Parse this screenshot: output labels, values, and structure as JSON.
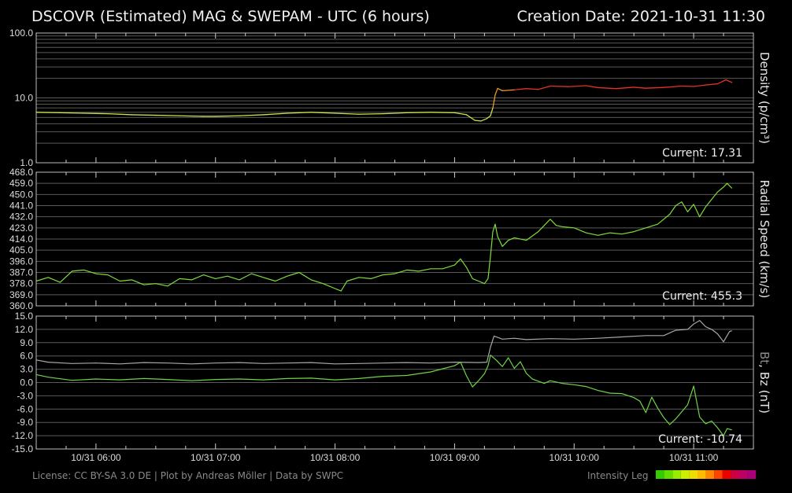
{
  "header": {
    "title": "DSCOVR (Estimated) MAG & SWEPAM - UTC (6 hours)",
    "creation": "Creation Date: 2021-10-31 11:30"
  },
  "footer": {
    "license": "License: CC BY-SA 3.0 DE | Plot by Andreas Möller | Data by SWPC",
    "legend_label": "Intensity Leg",
    "legend_colors": [
      "#33cc00",
      "#66dd00",
      "#99ee00",
      "#ccee00",
      "#eedd00",
      "#ffbb00",
      "#ff8800",
      "#ff4400",
      "#ee0000",
      "#cc0044",
      "#bb0066",
      "#aa0077"
    ]
  },
  "chart_data": [
    {
      "type": "line",
      "id": "density",
      "ylabel": "Density (p/cm³)",
      "yscale": "log",
      "ylim": [
        1,
        100
      ],
      "yticks": [
        "100.0",
        "10.0",
        "1.0"
      ],
      "current": "Current: 17.31",
      "xlim": [
        5.5,
        11.5
      ],
      "xticks": [
        "10/31 06:00",
        "10/31 07:00",
        "10/31 08:00",
        "10/31 09:00",
        "10/31 10:00",
        "10/31 11:00"
      ],
      "series": [
        {
          "name": "Density",
          "points": [
            [
              5.5,
              6.0
            ],
            [
              5.7,
              5.9
            ],
            [
              5.9,
              5.8
            ],
            [
              6.1,
              5.7
            ],
            [
              6.3,
              5.5
            ],
            [
              6.5,
              5.4
            ],
            [
              6.7,
              5.3
            ],
            [
              6.9,
              5.2
            ],
            [
              7.0,
              5.2
            ],
            [
              7.2,
              5.3
            ],
            [
              7.4,
              5.5
            ],
            [
              7.6,
              5.8
            ],
            [
              7.8,
              6.0
            ],
            [
              8.0,
              5.8
            ],
            [
              8.2,
              5.6
            ],
            [
              8.4,
              5.7
            ],
            [
              8.6,
              5.9
            ],
            [
              8.8,
              6.0
            ],
            [
              9.0,
              5.9
            ],
            [
              9.1,
              5.5
            ],
            [
              9.17,
              4.5
            ],
            [
              9.22,
              4.4
            ],
            [
              9.27,
              4.8
            ],
            [
              9.3,
              5.3
            ],
            [
              9.32,
              7.0
            ],
            [
              9.34,
              11.2
            ],
            [
              9.36,
              14.0
            ],
            [
              9.4,
              12.9
            ],
            [
              9.5,
              13.3
            ],
            [
              9.6,
              13.9
            ],
            [
              9.7,
              13.5
            ],
            [
              9.8,
              15.2
            ],
            [
              9.95,
              14.9
            ],
            [
              10.1,
              15.4
            ],
            [
              10.2,
              14.4
            ],
            [
              10.35,
              13.9
            ],
            [
              10.5,
              14.6
            ],
            [
              10.6,
              14.1
            ],
            [
              10.75,
              14.5
            ],
            [
              10.9,
              15.2
            ],
            [
              11.0,
              15.0
            ],
            [
              11.1,
              15.8
            ],
            [
              11.2,
              16.5
            ],
            [
              11.27,
              19.0
            ],
            [
              11.32,
              17.3
            ]
          ]
        }
      ]
    },
    {
      "type": "line",
      "id": "speed",
      "ylabel": "Radial Speed (km/s)",
      "ylim": [
        360,
        468
      ],
      "yticks": [
        "468.0",
        "459.0",
        "450.0",
        "441.0",
        "432.0",
        "423.0",
        "414.0",
        "405.0",
        "396.0",
        "387.0",
        "378.0",
        "369.0",
        "360.0"
      ],
      "current": "Current: 455.3",
      "xlim": [
        5.5,
        11.5
      ],
      "series": [
        {
          "name": "Radial Speed",
          "points": [
            [
              5.5,
              380
            ],
            [
              5.6,
              383
            ],
            [
              5.7,
              379
            ],
            [
              5.8,
              388
            ],
            [
              5.9,
              389
            ],
            [
              6.0,
              386
            ],
            [
              6.1,
              385
            ],
            [
              6.2,
              380
            ],
            [
              6.3,
              381
            ],
            [
              6.4,
              377
            ],
            [
              6.5,
              378
            ],
            [
              6.6,
              376
            ],
            [
              6.7,
              382
            ],
            [
              6.8,
              381
            ],
            [
              6.9,
              385
            ],
            [
              7.0,
              382
            ],
            [
              7.1,
              384
            ],
            [
              7.2,
              381
            ],
            [
              7.3,
              386
            ],
            [
              7.4,
              383
            ],
            [
              7.5,
              380
            ],
            [
              7.6,
              384
            ],
            [
              7.7,
              387
            ],
            [
              7.8,
              381
            ],
            [
              7.9,
              378
            ],
            [
              8.0,
              374
            ],
            [
              8.05,
              372
            ],
            [
              8.1,
              380
            ],
            [
              8.2,
              383
            ],
            [
              8.3,
              382
            ],
            [
              8.4,
              385
            ],
            [
              8.5,
              386
            ],
            [
              8.6,
              389
            ],
            [
              8.7,
              388
            ],
            [
              8.8,
              390
            ],
            [
              8.9,
              390
            ],
            [
              9.0,
              393
            ],
            [
              9.05,
              398
            ],
            [
              9.1,
              391
            ],
            [
              9.15,
              382
            ],
            [
              9.2,
              380
            ],
            [
              9.25,
              378
            ],
            [
              9.28,
              382
            ],
            [
              9.3,
              400
            ],
            [
              9.32,
              420
            ],
            [
              9.34,
              426
            ],
            [
              9.36,
              416
            ],
            [
              9.4,
              408
            ],
            [
              9.45,
              413
            ],
            [
              9.5,
              415
            ],
            [
              9.6,
              413
            ],
            [
              9.7,
              420
            ],
            [
              9.75,
              425
            ],
            [
              9.8,
              430
            ],
            [
              9.85,
              425
            ],
            [
              9.9,
              424
            ],
            [
              10.0,
              423
            ],
            [
              10.1,
              419
            ],
            [
              10.2,
              417
            ],
            [
              10.3,
              419
            ],
            [
              10.4,
              418
            ],
            [
              10.5,
              420
            ],
            [
              10.6,
              423
            ],
            [
              10.7,
              426
            ],
            [
              10.75,
              430
            ],
            [
              10.8,
              434
            ],
            [
              10.85,
              441
            ],
            [
              10.9,
              444
            ],
            [
              10.95,
              436
            ],
            [
              11.0,
              442
            ],
            [
              11.05,
              432
            ],
            [
              11.1,
              440
            ],
            [
              11.15,
              446
            ],
            [
              11.2,
              452
            ],
            [
              11.25,
              456
            ],
            [
              11.28,
              459
            ],
            [
              11.32,
              455
            ]
          ]
        }
      ]
    },
    {
      "type": "line",
      "id": "mag",
      "ylabel_bt": "Bt",
      "ylabel_sep": ", ",
      "ylabel_bz": "Bz (nT)",
      "ylim": [
        -15,
        15
      ],
      "yticks": [
        "15.0",
        "12.0",
        "9.0",
        "6.0",
        "3.0",
        "0.0",
        "-3.0",
        "-6.0",
        "-9.0",
        "-12.0",
        "-15.0"
      ],
      "current": "Current: -10.74",
      "xlim": [
        5.5,
        11.5
      ],
      "series": [
        {
          "name": "Bt",
          "color": "#a8a8a8",
          "points": [
            [
              5.5,
              5.1
            ],
            [
              5.6,
              4.6
            ],
            [
              5.8,
              4.3
            ],
            [
              6.0,
              4.4
            ],
            [
              6.2,
              4.2
            ],
            [
              6.4,
              4.5
            ],
            [
              6.6,
              4.4
            ],
            [
              6.8,
              4.2
            ],
            [
              7.0,
              4.4
            ],
            [
              7.2,
              4.5
            ],
            [
              7.4,
              4.3
            ],
            [
              7.6,
              4.4
            ],
            [
              7.8,
              4.5
            ],
            [
              8.0,
              4.2
            ],
            [
              8.2,
              4.3
            ],
            [
              8.4,
              4.4
            ],
            [
              8.6,
              4.5
            ],
            [
              8.8,
              4.4
            ],
            [
              9.0,
              4.6
            ],
            [
              9.2,
              4.5
            ],
            [
              9.27,
              4.6
            ],
            [
              9.3,
              8.0
            ],
            [
              9.33,
              10.5
            ],
            [
              9.4,
              9.8
            ],
            [
              9.5,
              10.0
            ],
            [
              9.6,
              9.7
            ],
            [
              9.8,
              9.9
            ],
            [
              10.0,
              9.8
            ],
            [
              10.2,
              10.0
            ],
            [
              10.4,
              10.3
            ],
            [
              10.6,
              10.6
            ],
            [
              10.75,
              10.6
            ],
            [
              10.85,
              11.8
            ],
            [
              10.95,
              12.0
            ],
            [
              11.0,
              13.2
            ],
            [
              11.05,
              14.0
            ],
            [
              11.1,
              12.6
            ],
            [
              11.15,
              12.0
            ],
            [
              11.2,
              11.0
            ],
            [
              11.25,
              9.2
            ],
            [
              11.3,
              11.5
            ],
            [
              11.32,
              11.7
            ]
          ]
        },
        {
          "name": "Bz",
          "color": "#6fd34a",
          "points": [
            [
              5.5,
              1.8
            ],
            [
              5.6,
              1.2
            ],
            [
              5.8,
              0.5
            ],
            [
              6.0,
              0.8
            ],
            [
              6.2,
              0.6
            ],
            [
              6.4,
              0.9
            ],
            [
              6.6,
              0.7
            ],
            [
              6.8,
              0.4
            ],
            [
              7.0,
              0.7
            ],
            [
              7.2,
              0.8
            ],
            [
              7.4,
              0.6
            ],
            [
              7.6,
              0.9
            ],
            [
              7.8,
              1.0
            ],
            [
              8.0,
              0.6
            ],
            [
              8.2,
              0.9
            ],
            [
              8.4,
              1.4
            ],
            [
              8.6,
              1.6
            ],
            [
              8.8,
              2.4
            ],
            [
              9.0,
              3.8
            ],
            [
              9.05,
              4.6
            ],
            [
              9.1,
              1.5
            ],
            [
              9.15,
              -1.0
            ],
            [
              9.2,
              0.4
            ],
            [
              9.25,
              2.0
            ],
            [
              9.28,
              3.8
            ],
            [
              9.3,
              6.2
            ],
            [
              9.35,
              5.0
            ],
            [
              9.4,
              3.6
            ],
            [
              9.45,
              5.6
            ],
            [
              9.5,
              3.2
            ],
            [
              9.55,
              4.7
            ],
            [
              9.6,
              2.1
            ],
            [
              9.65,
              0.8
            ],
            [
              9.7,
              0.3
            ],
            [
              9.75,
              -0.2
            ],
            [
              9.8,
              0.4
            ],
            [
              9.9,
              -0.2
            ],
            [
              10.0,
              -0.5
            ],
            [
              10.1,
              -0.9
            ],
            [
              10.2,
              -1.8
            ],
            [
              10.3,
              -2.4
            ],
            [
              10.4,
              -2.5
            ],
            [
              10.5,
              -3.4
            ],
            [
              10.55,
              -4.2
            ],
            [
              10.6,
              -6.8
            ],
            [
              10.65,
              -3.3
            ],
            [
              10.7,
              -5.8
            ],
            [
              10.75,
              -7.9
            ],
            [
              10.8,
              -9.5
            ],
            [
              10.85,
              -8.2
            ],
            [
              10.9,
              -6.6
            ],
            [
              10.95,
              -5.0
            ],
            [
              11.0,
              -0.8
            ],
            [
              11.05,
              -7.8
            ],
            [
              11.1,
              -9.3
            ],
            [
              11.15,
              -8.7
            ],
            [
              11.2,
              -10.2
            ],
            [
              11.25,
              -12.0
            ],
            [
              11.28,
              -10.4
            ],
            [
              11.32,
              -10.7
            ]
          ]
        }
      ]
    }
  ]
}
